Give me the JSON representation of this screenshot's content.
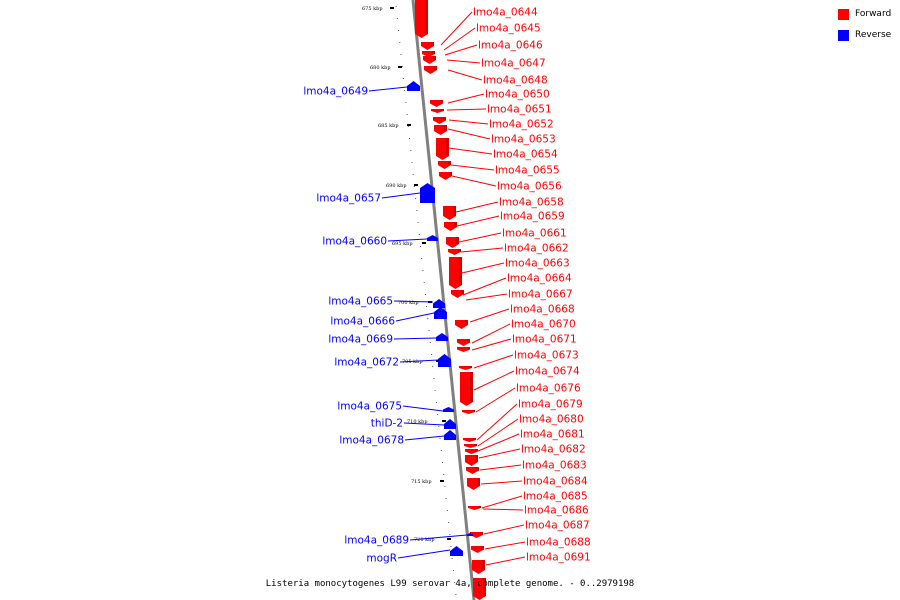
{
  "legend": {
    "forward": {
      "label": "Forward",
      "color": "#ff0000"
    },
    "reverse": {
      "label": "Reverse",
      "color": "#0000ff"
    }
  },
  "caption": "Listeria monocytogenes L99 serovar 4a, complete genome. - 0..2979198",
  "ticks": [
    "675 kbp",
    "680 kbp",
    "685 kbp",
    "690 kbp",
    "695 kbp",
    "700 kbp",
    "705 kbp",
    "710 kbp",
    "715 kbp",
    "720 kbp"
  ],
  "genes_forward": [
    "lmo4a_0644",
    "lmo4a_0645",
    "lmo4a_0646",
    "lmo4a_0647",
    "lmo4a_0648",
    "lmo4a_0650",
    "lmo4a_0651",
    "lmo4a_0652",
    "lmo4a_0653",
    "lmo4a_0654",
    "lmo4a_0655",
    "lmo4a_0656",
    "lmo4a_0658",
    "lmo4a_0659",
    "lmo4a_0661",
    "lmo4a_0662",
    "lmo4a_0663",
    "lmo4a_0664",
    "lmo4a_0667",
    "lmo4a_0668",
    "lmo4a_0670",
    "lmo4a_0671",
    "lmo4a_0673",
    "lmo4a_0674",
    "lmo4a_0676",
    "lmo4a_0679",
    "lmo4a_0680",
    "lmo4a_0681",
    "lmo4a_0682",
    "lmo4a_0683",
    "lmo4a_0684",
    "lmo4a_0685",
    "lmo4a_0686",
    "lmo4a_0687",
    "lmo4a_0688",
    "lmo4a_0691"
  ],
  "genes_reverse": [
    "lmo4a_0649",
    "lmo4a_0657",
    "lmo4a_0660",
    "lmo4a_0665",
    "lmo4a_0666",
    "lmo4a_0669",
    "lmo4a_0672",
    "lmo4a_0675",
    "thiD-2",
    "lmo4a_0678",
    "lmo4a_0689",
    "mogR"
  ]
}
